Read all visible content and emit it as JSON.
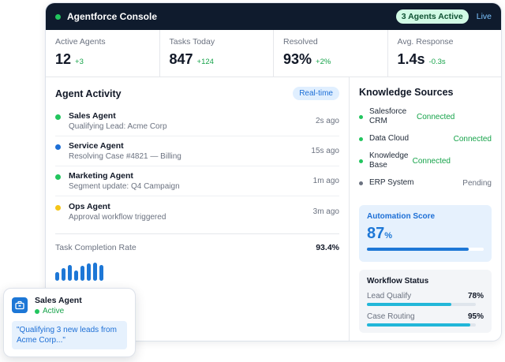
{
  "titlebar": {
    "title": "Agentforce Console",
    "active_badge": "3 Agents Active",
    "live_label": "Live"
  },
  "stats": [
    {
      "label": "Active Agents",
      "value": "12",
      "delta": "+3"
    },
    {
      "label": "Tasks Today",
      "value": "847",
      "delta": "+124"
    },
    {
      "label": "Resolved",
      "value": "93%",
      "delta": "+2%"
    },
    {
      "label": "Avg. Response",
      "value": "1.4s",
      "delta": "-0.3s"
    }
  ],
  "activity": {
    "title": "Agent Activity",
    "badge": "Real-time",
    "items": [
      {
        "name": "Sales Agent",
        "desc": "Qualifying Lead: Acme Corp",
        "time": "2s ago",
        "color": "#22c55e"
      },
      {
        "name": "Service Agent",
        "desc": "Resolving Case #4821 — Billing",
        "time": "15s ago",
        "color": "#1d6fd6"
      },
      {
        "name": "Marketing Agent",
        "desc": "Segment update: Q4 Campaign",
        "time": "1m ago",
        "color": "#22c55e"
      },
      {
        "name": "Ops Agent",
        "desc": "Approval workflow triggered",
        "time": "3m ago",
        "color": "#f5c518"
      }
    ],
    "completion_label": "Task Completion Rate",
    "completion_value": "93.4%",
    "bar_levels": [
      0.45,
      0.65,
      0.85,
      0.55,
      0.8,
      0.9,
      0.95,
      0.85
    ]
  },
  "knowledge": {
    "title": "Knowledge Sources",
    "items": [
      {
        "name": "Salesforce CRM",
        "status": "Connected",
        "state": "connected",
        "color": "#22c55e"
      },
      {
        "name": "Data Cloud",
        "status": "Connected",
        "state": "connected",
        "color": "#22c55e"
      },
      {
        "name": "Knowledge Base",
        "status": "Connected",
        "state": "connected",
        "color": "#22c55e"
      },
      {
        "name": "ERP System",
        "status": "Pending",
        "state": "pending",
        "color": "#6b7280"
      }
    ]
  },
  "automation": {
    "label": "Automation Score",
    "score": "87",
    "unit": "%",
    "level": 0.87
  },
  "workflow": {
    "label": "Workflow Status",
    "items": [
      {
        "name": "Lead Qualify",
        "pct": "78%",
        "level": 0.78,
        "color": "#22b7d9"
      },
      {
        "name": "Case Routing",
        "pct": "95%",
        "level": 0.95,
        "color": "#22b7d9"
      }
    ]
  },
  "float_card": {
    "name": "Sales Agent",
    "status": "Active",
    "quote": "\"Qualifying 3 new leads from Acme Corp...\""
  }
}
